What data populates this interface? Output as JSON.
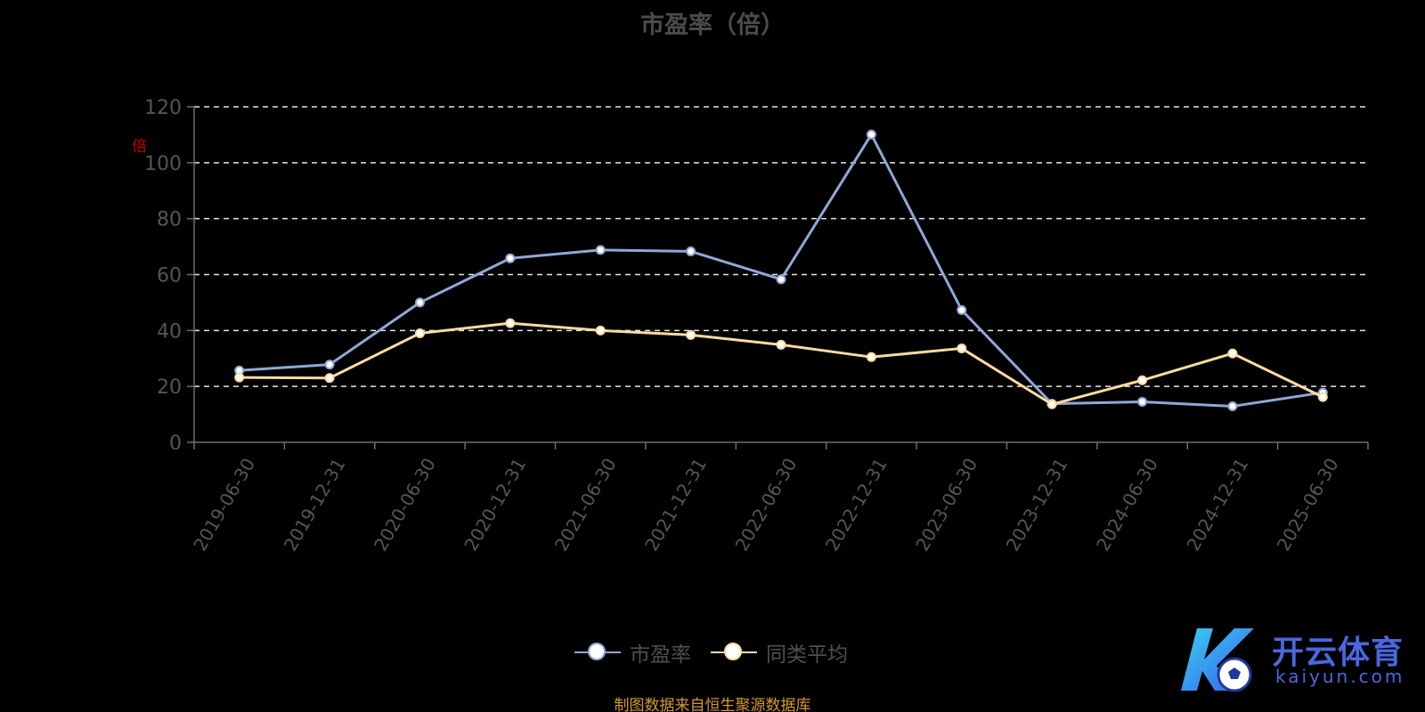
{
  "chart_data": {
    "type": "line",
    "title": "市盈率（倍）",
    "ylabel": "倍",
    "categories": [
      "2019-06-30",
      "2019-12-31",
      "2020-06-30",
      "2020-12-31",
      "2021-06-30",
      "2021-12-31",
      "2022-06-30",
      "2022-12-31",
      "2023-06-30",
      "2023-12-31",
      "2024-06-30",
      "2024-12-31",
      "2025-06-30"
    ],
    "ylim": [
      0,
      120
    ],
    "yticks": [
      0,
      20,
      40,
      60,
      80,
      100,
      120
    ],
    "grid": true,
    "legend_position": "bottom-center",
    "series": [
      {
        "name": "市盈率",
        "color": "#8fa8d6",
        "values": [
          25.7,
          27.8,
          50.0,
          65.8,
          68.8,
          68.3,
          58.3,
          110.1,
          47.3,
          13.8,
          14.5,
          12.9,
          17.8
        ]
      },
      {
        "name": "同类平均",
        "color": "#fddba0",
        "values": [
          23.2,
          23.0,
          39.0,
          42.6,
          40.0,
          38.4,
          34.9,
          30.5,
          33.6,
          13.6,
          22.2,
          31.8,
          16.2
        ]
      }
    ],
    "source_note": "制图数据来自恒生聚源数据库"
  },
  "watermark": {
    "brand": "开云体育",
    "url": "kaiyun.com"
  }
}
